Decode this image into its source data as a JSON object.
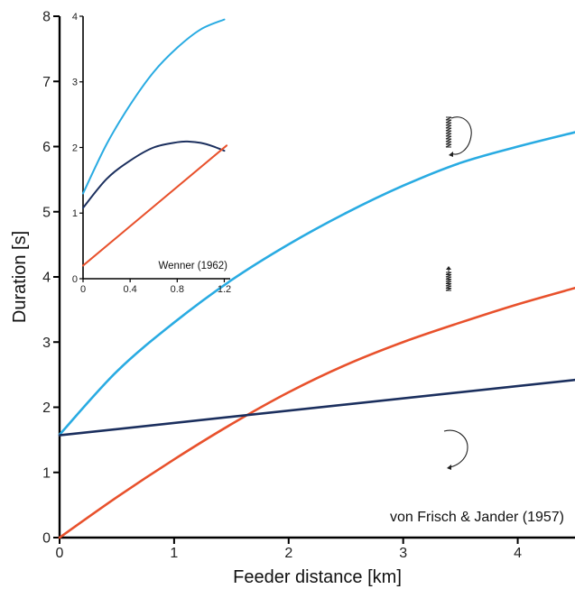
{
  "chart_data": [
    {
      "type": "line",
      "xlabel": "Feeder distance [km]",
      "ylabel": "Duration [s]",
      "xlim": [
        0,
        4.5
      ],
      "ylim": [
        0,
        8
      ],
      "xticks": [
        0,
        1,
        2,
        3,
        4
      ],
      "yticks": [
        0,
        1,
        2,
        3,
        4,
        5,
        6,
        7,
        8
      ],
      "annotation": "von Frisch & Jander (1957)",
      "series": [
        {
          "color": "#29abe2",
          "x": [
            0,
            0.5,
            1,
            1.5,
            2,
            2.5,
            3,
            3.5,
            4,
            4.5
          ],
          "y": [
            1.58,
            2.55,
            3.3,
            3.95,
            4.5,
            4.98,
            5.4,
            5.75,
            6.0,
            6.22
          ]
        },
        {
          "color": "#e8512c",
          "x": [
            0,
            0.5,
            1,
            1.5,
            2,
            2.5,
            3,
            3.5,
            4,
            4.5
          ],
          "y": [
            0.0,
            0.62,
            1.2,
            1.74,
            2.23,
            2.65,
            3.0,
            3.3,
            3.58,
            3.83
          ]
        },
        {
          "color": "#1b2f5e",
          "x": [
            0,
            4.5
          ],
          "y": [
            1.57,
            2.42
          ]
        }
      ],
      "grid": false
    },
    {
      "type": "line",
      "xlim": [
        0,
        1.25
      ],
      "ylim": [
        0,
        4
      ],
      "xticks": [
        0,
        0.4,
        0.8,
        1.2
      ],
      "yticks": [
        0,
        1,
        2,
        3,
        4
      ],
      "annotation": "Wenner (1962)",
      "series": [
        {
          "color": "#29abe2",
          "x": [
            0,
            0.2,
            0.4,
            0.6,
            0.8,
            1.0,
            1.2
          ],
          "y": [
            1.3,
            2.05,
            2.65,
            3.15,
            3.52,
            3.8,
            3.95
          ]
        },
        {
          "color": "#1b2f5e",
          "x": [
            0,
            0.2,
            0.4,
            0.6,
            0.8,
            0.9,
            1.0,
            1.1,
            1.2
          ],
          "y": [
            1.08,
            1.52,
            1.8,
            2.0,
            2.08,
            2.09,
            2.07,
            2.02,
            1.95
          ]
        },
        {
          "color": "#e8512c",
          "x": [
            0,
            1.22
          ],
          "y": [
            0.2,
            2.03
          ]
        }
      ],
      "grid": false
    }
  ],
  "dance_icons": [
    {
      "name": "waggle-dance-icon"
    },
    {
      "name": "sickle-dance-icon"
    },
    {
      "name": "round-dance-icon"
    }
  ]
}
